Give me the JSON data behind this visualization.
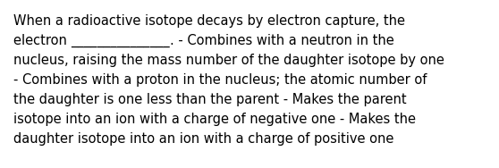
{
  "background_color": "#ffffff",
  "text_color": "#000000",
  "font_size": 10.5,
  "font_family": "DejaVu Sans",
  "line1": "When a radioactive isotope decays by electron capture, the",
  "line2_part1": "electron ",
  "line2_underline": "_______________",
  "line2_part2": ". - Combines with a neutron in the",
  "line3": "nucleus, raising the mass number of the daughter isotope by one",
  "line4": "- Combines with a proton in the nucleus; the atomic number of",
  "line5": "the daughter is one less than the parent - Makes the parent",
  "line6": "isotope into an ion with a charge of negative one - Makes the",
  "line7": "daughter isotope into an ion with a charge of positive one",
  "fig_width": 5.58,
  "fig_height": 1.88,
  "dpi": 100
}
